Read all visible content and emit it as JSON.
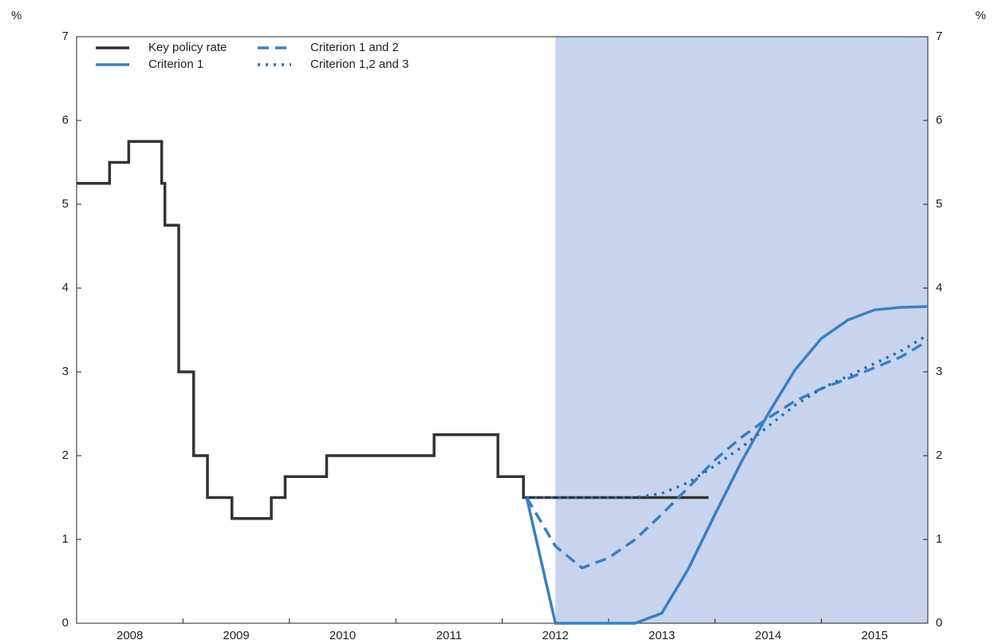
{
  "chart_data": {
    "type": "line",
    "ylabel": "%",
    "y2label": "%",
    "xlim": [
      2008,
      2016
    ],
    "xticks": [
      {
        "value": 2008.5,
        "label": "2008"
      },
      {
        "value": 2009.5,
        "label": "2009"
      },
      {
        "value": 2010.5,
        "label": "2010"
      },
      {
        "value": 2011.5,
        "label": "2011"
      },
      {
        "value": 2012.5,
        "label": "2012"
      },
      {
        "value": 2013.5,
        "label": "2013"
      },
      {
        "value": 2014.5,
        "label": "2014"
      },
      {
        "value": 2015.5,
        "label": "2015"
      }
    ],
    "ylim": [
      0,
      7
    ],
    "yticks": [
      0,
      1,
      2,
      3,
      4,
      5,
      6,
      7
    ],
    "y2lim": [
      0,
      7
    ],
    "y2ticks": [
      0,
      1,
      2,
      3,
      4,
      5,
      6,
      7
    ],
    "shaded_region": [
      2012.5,
      2016
    ],
    "shade_color": "#c8d4ee",
    "series": [
      {
        "name": "Key policy rate",
        "color": "#333333",
        "style": "step",
        "x": [
          2008.0,
          2008.31,
          2008.49,
          2008.8,
          2008.83,
          2008.96,
          2009.1,
          2009.23,
          2009.46,
          2009.83,
          2009.96,
          2010.35,
          2011.36,
          2011.96,
          2012.2,
          2013.94
        ],
        "values": [
          5.25,
          5.5,
          5.75,
          5.25,
          4.75,
          3,
          2,
          1.5,
          1.25,
          1.5,
          1.75,
          2,
          2.25,
          1.75,
          1.5,
          1.5
        ]
      },
      {
        "name": "Criterion 1",
        "color": "#3a7fc1",
        "style": "solid",
        "x": [
          2012.23,
          2012.5,
          2012.75,
          2013.0,
          2013.25,
          2013.5,
          2013.75,
          2014.0,
          2014.25,
          2014.5,
          2014.75,
          2015.0,
          2015.25,
          2015.5,
          2015.75,
          2016.0
        ],
        "values": [
          1.5,
          0,
          0,
          0,
          0,
          0.12,
          0.65,
          1.3,
          1.93,
          2.5,
          3.02,
          3.4,
          3.62,
          3.74,
          3.77,
          3.78
        ]
      },
      {
        "name": "Criterion 1 and 2",
        "color": "#3a7fc1",
        "style": "dash",
        "x": [
          2012.23,
          2012.5,
          2012.75,
          2013.0,
          2013.25,
          2013.5,
          2013.75,
          2014.0,
          2014.25,
          2014.5,
          2014.75,
          2015.0,
          2015.25,
          2015.5,
          2015.75,
          2016.0
        ],
        "values": [
          1.5,
          0.92,
          0.66,
          0.78,
          1.0,
          1.3,
          1.62,
          1.95,
          2.22,
          2.45,
          2.65,
          2.8,
          2.92,
          3.05,
          3.18,
          3.37
        ]
      },
      {
        "name": "Criterion 1,2 and 3",
        "color": "#1f6fb4",
        "style": "dot",
        "x": [
          2012.23,
          2012.5,
          2012.75,
          2013.0,
          2013.25,
          2013.5,
          2013.75,
          2014.0,
          2014.25,
          2014.5,
          2014.75,
          2015.0,
          2015.25,
          2015.5,
          2015.75,
          2016.0
        ],
        "values": [
          1.5,
          1.5,
          1.5,
          1.5,
          1.5,
          1.55,
          1.68,
          1.88,
          2.1,
          2.35,
          2.6,
          2.8,
          2.95,
          3.1,
          3.25,
          3.44
        ]
      }
    ]
  }
}
